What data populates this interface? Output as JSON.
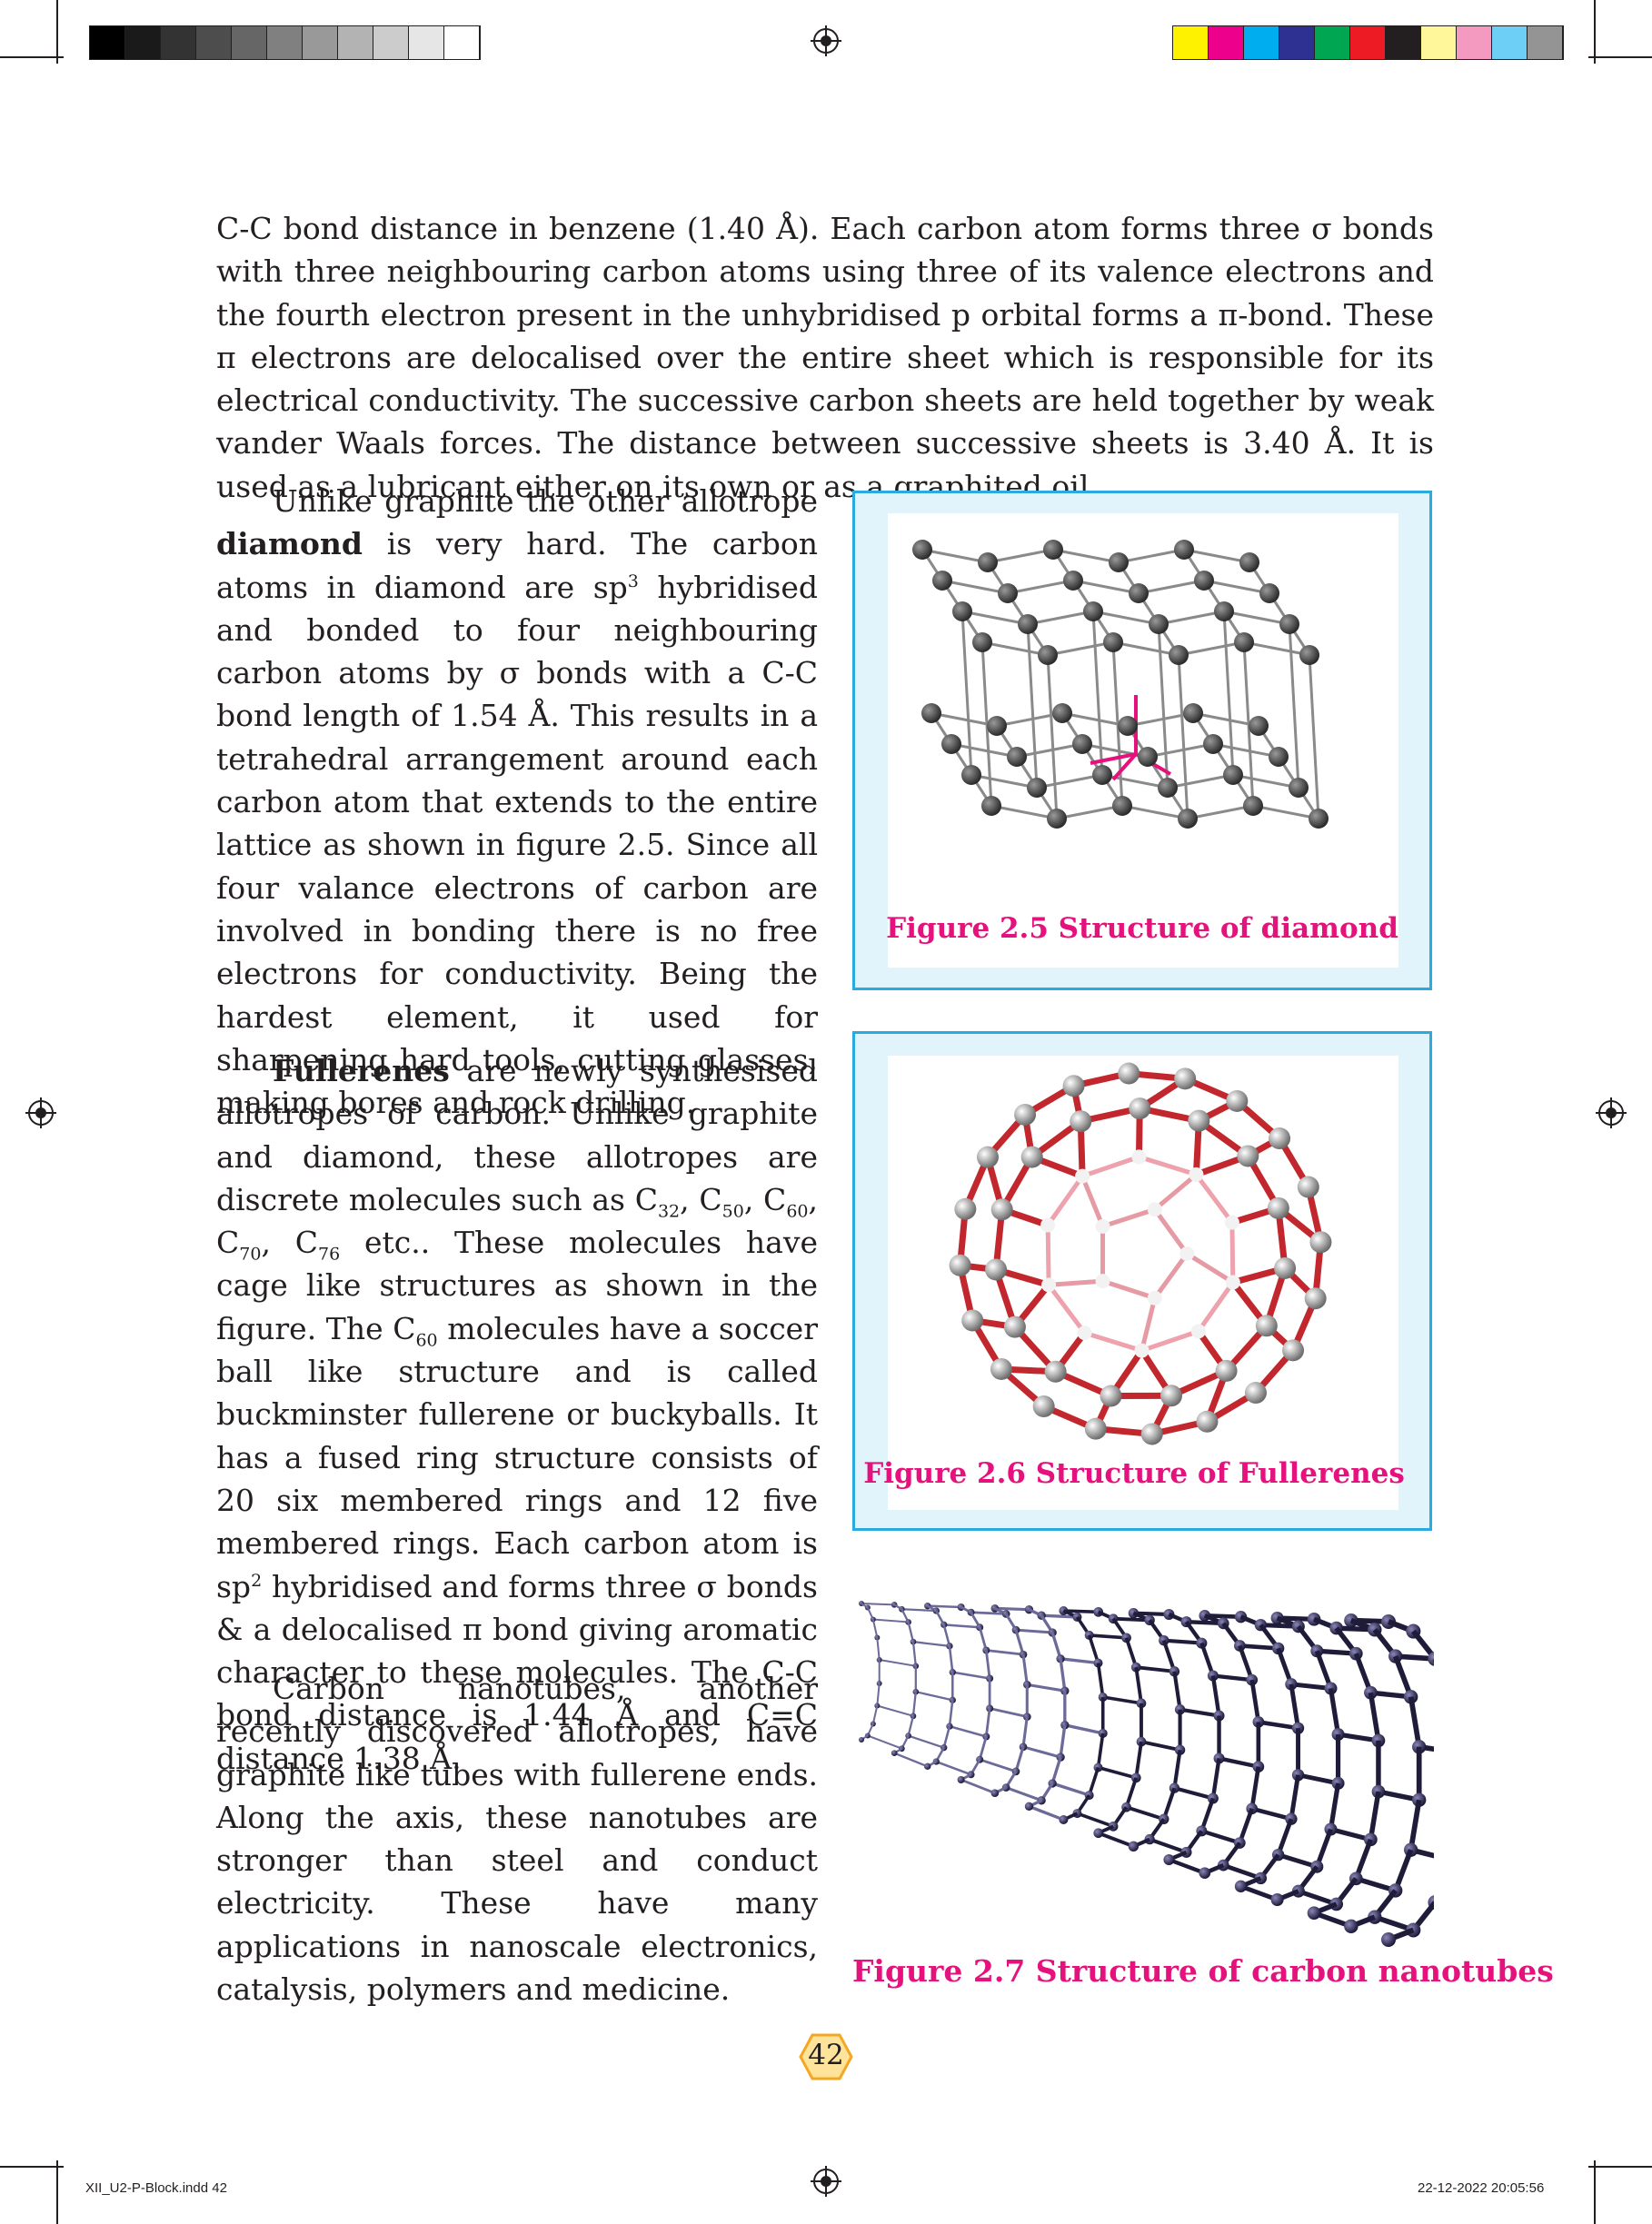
{
  "page": {
    "number": "42",
    "slug_file": "XII_U2-P-Block.indd   42",
    "slug_date": "22-12-2022   20:05:56"
  },
  "colors": {
    "caption": "#e5127d",
    "figure_border": "#29abe2",
    "figure_fill": "#e1f4fb",
    "grayscale_bar": [
      "#000000",
      "#1a1a1a",
      "#333333",
      "#4d4d4d",
      "#666666",
      "#808080",
      "#999999",
      "#b3b3b3",
      "#cccccc",
      "#e6e6e6",
      "#ffffff"
    ],
    "color_bar": [
      "#fff200",
      "#ec008c",
      "#00aeef",
      "#2e3192",
      "#00a651",
      "#ed1c24",
      "#231f20",
      "#fff799",
      "#f49ac1",
      "#6dcff6",
      "#949494"
    ]
  },
  "text": {
    "p1": "C-C bond distance in benzene (1.40 Å). Each carbon atom forms three σ bonds with three neighbouring carbon atoms using three of its valence electrons and the fourth electron present in the unhybridised p orbital forms a π-bond. These π electrons are delocalised over the entire sheet which is responsible for its electrical conductivity. The successive carbon sheets are held together by weak vander Waals forces. The distance between successive sheets is 3.40 Å. It is used as a lubricant either on its own or as a graphited oil.",
    "p2_a": "Unlike graphite the other allotrope",
    "p2_bold": "diamond",
    "p2_b": "is very hard. The carbon atoms in diamond are sp",
    "p2_sup": "3",
    "p2_c": "hybridised and bonded to four neighbouring carbon atoms by σ bonds with a C-C bond length of 1.54 Å. This results in a tetrahedral arrangement around each carbon atom that extends to the entire lattice as shown in figure 2.5. Since all four valance electrons of carbon are involved in bonding there is no free electrons for conductivity. Being the hardest element, it used for sharpening hard tools, cutting glasses, making bores and rock drilling.",
    "p3_bold": "Fullerenes",
    "p3_a": "are newly synthesised allotropes of carbon. Unlike graphite and diamond, these allotropes are discrete molecules such as C",
    "p3_s1": "32",
    "p3_b": ",",
    "p3_c1": "C",
    "p3_s2": "50",
    "p3_c2": ", C",
    "p3_s3": "60",
    "p3_c3": ", C",
    "p3_s4": "70",
    "p3_c4": ", C",
    "p3_s5": "76",
    "p3_c5": "etc.. These molecules have cage like structures as shown in the figure. The C",
    "p3_s6": "60",
    "p3_c6": "molecules have a soccer ball like structure and is called buckminster fullerene or buckyballs. It has a fused ring structure consists of 20 six membered rings and 12 five membered rings. Each carbon atom is sp",
    "p3_sup": "2",
    "p3_c7": "hybridised and forms three σ bonds & a delocalised π bond giving aromatic character to these molecules. The C-C bond distance is 1.44 Å and C=C distance 1.38 Å.",
    "p4": "Carbon nanotubes, another recently discovered allotropes, have graphite like tubes with fullerene ends. Along the axis, these nanotubes are stronger than steel and conduct electricity. These have many applications in nanoscale electronics, catalysis, polymers and medicine."
  },
  "figures": {
    "fig1_caption": "Figure 2.5 Structure of diamond",
    "fig1_image": "diamond-lattice",
    "fig2_caption": "Figure 2.6 Structure of Fullerenes",
    "fig2_image": "fullerene-c60",
    "fig3_caption": "Figure 2.7 Structure of carbon nanotubes",
    "fig3_image": "carbon-nanotube"
  }
}
